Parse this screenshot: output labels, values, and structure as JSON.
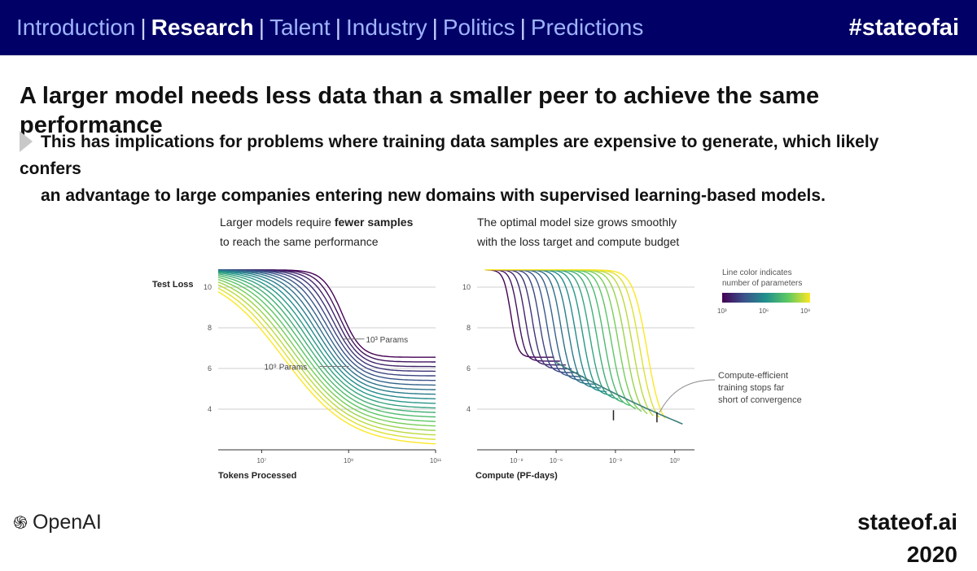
{
  "header": {
    "nav": [
      {
        "label": "Introduction",
        "active": false
      },
      {
        "label": "Research",
        "active": true
      },
      {
        "label": "Talent",
        "active": false
      },
      {
        "label": "Industry",
        "active": false
      },
      {
        "label": "Politics",
        "active": false
      },
      {
        "label": "Predictions",
        "active": false
      }
    ],
    "hashtag": "#stateofai"
  },
  "slide": {
    "title": "A larger model needs less data than a smaller peer to achieve the same performance",
    "bullet_line1": "This has implications for problems where training data samples are expensive to generate, which likely confers",
    "bullet_line2": "an advantage to large companies entering new domains with supervised learning-based models."
  },
  "footer": {
    "logo_text": "OpenAI",
    "site": "stateof.ai",
    "year": "2020"
  },
  "colors": {
    "header_bg": "#000066",
    "nav_text": "#9fb3ff",
    "nav_active": "#ffffff",
    "colormap": [
      "#440154",
      "#3b528b",
      "#21918c",
      "#5ec962",
      "#fde725"
    ]
  },
  "chart_data": [
    {
      "type": "line",
      "subtitle_plain_1": "Larger models require ",
      "subtitle_bold": "fewer samples",
      "subtitle_plain_2": "to reach the same performance",
      "ylabel": "Test Loss",
      "xlabel": "Tokens Processed",
      "x_scale": "log",
      "xlim": [
        1000000.0,
        100000000000.0
      ],
      "ylim": [
        2,
        11
      ],
      "x_ticks": [
        {
          "value": 10000000.0,
          "label": "10⁷"
        },
        {
          "value": 1000000000.0,
          "label": "10⁹"
        },
        {
          "value": 100000000000.0,
          "label": "10¹¹"
        }
      ],
      "y_ticks": [
        {
          "value": 4,
          "label": "4"
        },
        {
          "value": 6,
          "label": "6"
        },
        {
          "value": 8,
          "label": "8"
        },
        {
          "value": 10,
          "label": "10"
        }
      ],
      "annotations": [
        {
          "text": "10³ Params",
          "x": 2500000000.0,
          "y": 7.45
        },
        {
          "text": "10⁹ Params",
          "x": 70000000.0,
          "y": 6.1
        }
      ],
      "grid": true,
      "series_count": 20
    },
    {
      "type": "line",
      "subtitle_plain_1": "The optimal model size grows smoothly",
      "subtitle_plain_2": "with the loss target and compute budget",
      "xlabel": "Compute (PF-days)",
      "x_scale": "log",
      "xlim": [
        1e-10,
        10.0
      ],
      "ylim": [
        2,
        11
      ],
      "x_ticks": [
        {
          "value": 1e-08,
          "label": "10⁻⁸"
        },
        {
          "value": 1e-06,
          "label": "10⁻⁶"
        },
        {
          "value": 0.001,
          "label": "10⁻³"
        },
        {
          "value": 1.0,
          "label": "10⁰"
        }
      ],
      "y_ticks": [
        {
          "value": 4,
          "label": "4"
        },
        {
          "value": 6,
          "label": "6"
        },
        {
          "value": 8,
          "label": "8"
        },
        {
          "value": 10,
          "label": "10"
        }
      ],
      "legend": {
        "title_line1": "Line color indicates",
        "title_line2": "number of parameters",
        "ticks": [
          "10³",
          "10⁶",
          "10⁹"
        ],
        "placement": "top-right"
      },
      "annotations": [
        {
          "text_line1": "Compute-efficient",
          "text_line2": "training stops far",
          "text_line3": "short of convergence"
        }
      ],
      "grid": true,
      "series_count": 20
    }
  ]
}
